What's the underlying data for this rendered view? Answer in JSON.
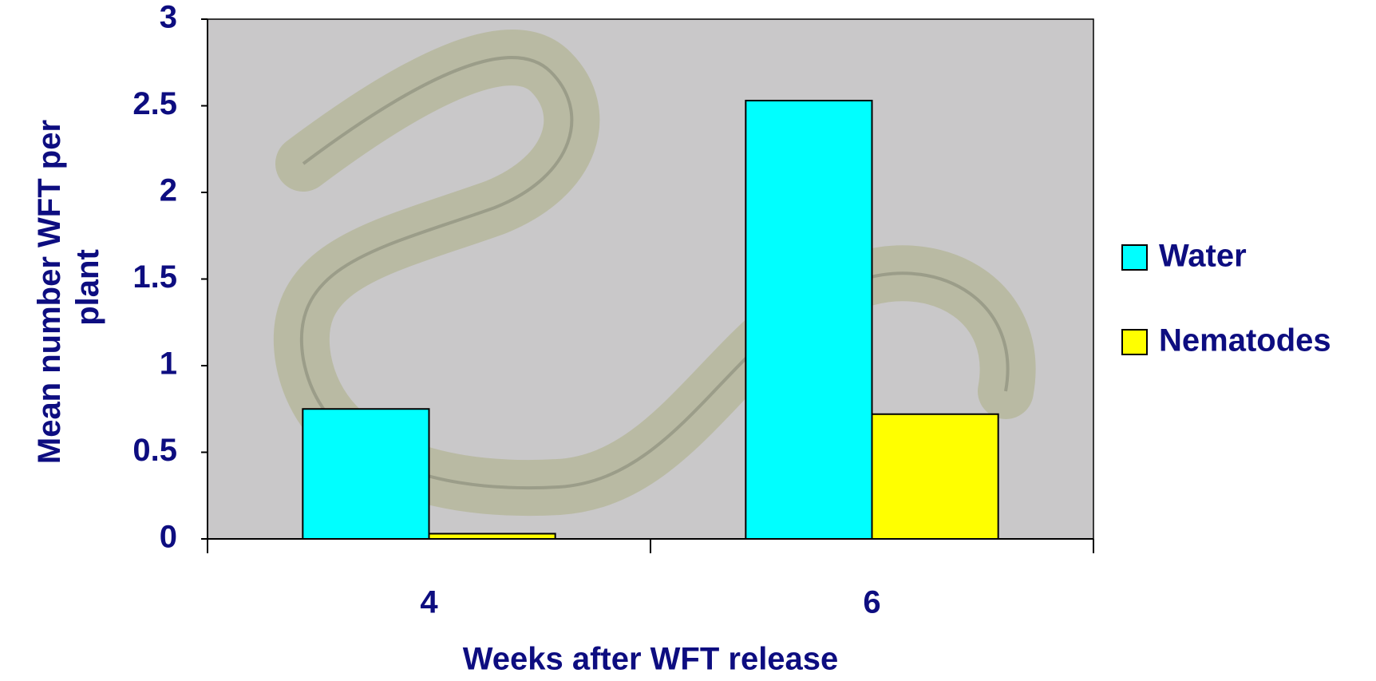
{
  "chart_data": {
    "type": "bar",
    "x_label": "Weeks after WFT release",
    "y_label": [
      "Mean number WFT per",
      "plant"
    ],
    "categories": [
      "4",
      "6"
    ],
    "series": [
      {
        "name": "Water",
        "color": "#00ffff",
        "values": [
          0.75,
          2.53
        ]
      },
      {
        "name": "Nematodes",
        "color": "#ffff00",
        "values": [
          0.03,
          0.72
        ]
      }
    ],
    "ylim": [
      0,
      3
    ],
    "yticks": [
      0,
      0.5,
      1,
      1.5,
      2,
      2.5,
      3
    ],
    "legend": "right"
  }
}
